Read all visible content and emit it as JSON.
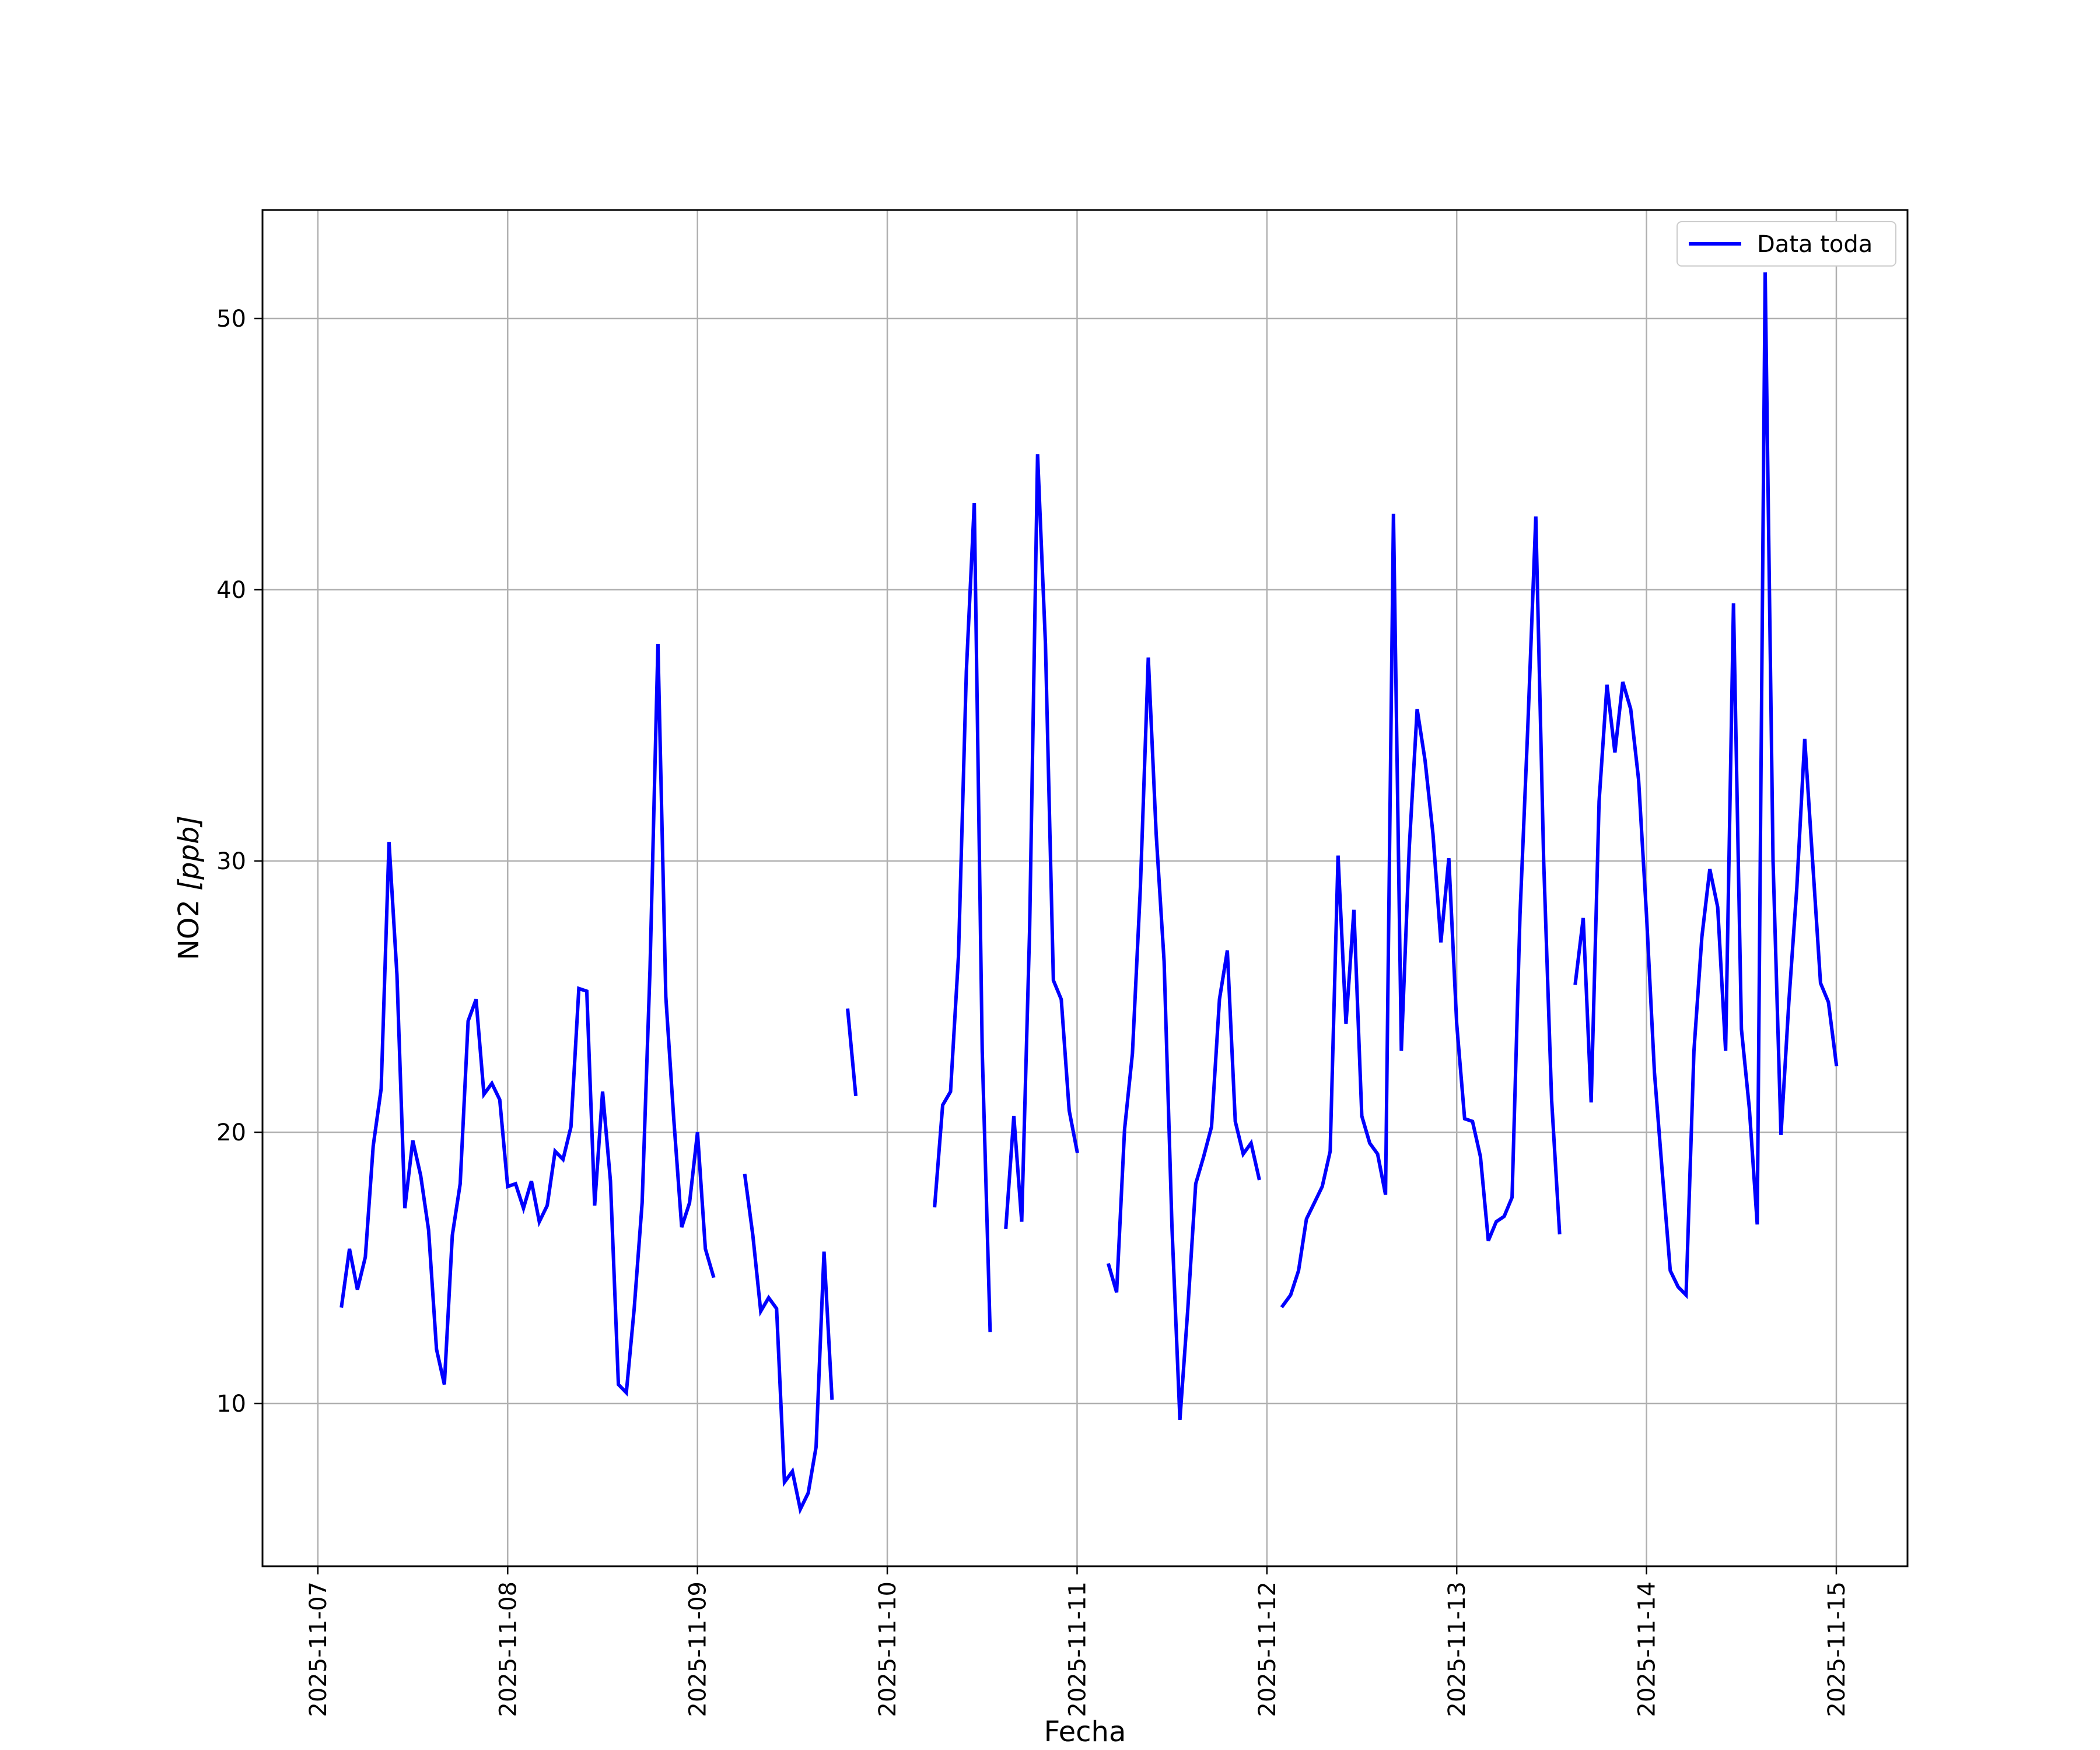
{
  "chart_data": {
    "type": "line",
    "title": "",
    "xlabel": "Fecha",
    "ylabel_main": "NO2 ",
    "ylabel_unit": "[ppb]",
    "xlim": [
      "2025-11-06 17:00",
      "2025-11-15 09:00"
    ],
    "ylim": [
      4,
      54
    ],
    "grid": true,
    "legend_position": "upper right",
    "x_ticks": [
      "2025-11-07",
      "2025-11-08",
      "2025-11-09",
      "2025-11-10",
      "2025-11-11",
      "2025-11-12",
      "2025-11-13",
      "2025-11-14",
      "2025-11-15"
    ],
    "y_ticks": [
      10,
      20,
      30,
      40,
      50
    ],
    "series": [
      {
        "name": "Data toda",
        "color": "#0000ff",
        "segments": [
          [
            [
              "2025-11-07 03:00",
              13.6
            ],
            [
              "2025-11-07 04:00",
              15.7
            ],
            [
              "2025-11-07 05:00",
              14.2
            ],
            [
              "2025-11-07 06:00",
              15.4
            ],
            [
              "2025-11-07 07:00",
              19.5
            ],
            [
              "2025-11-07 08:00",
              21.6
            ],
            [
              "2025-11-07 09:00",
              30.7
            ],
            [
              "2025-11-07 10:00",
              25.8
            ],
            [
              "2025-11-07 11:00",
              17.2
            ],
            [
              "2025-11-07 12:00",
              19.7
            ],
            [
              "2025-11-07 13:00",
              18.4
            ],
            [
              "2025-11-07 14:00",
              16.4
            ],
            [
              "2025-11-07 15:00",
              12.0
            ],
            [
              "2025-11-07 16:00",
              10.7
            ],
            [
              "2025-11-07 17:00",
              16.2
            ],
            [
              "2025-11-07 18:00",
              18.1
            ],
            [
              "2025-11-07 19:00",
              24.1
            ],
            [
              "2025-11-07 20:00",
              24.9
            ],
            [
              "2025-11-07 21:00",
              21.4
            ],
            [
              "2025-11-07 22:00",
              21.8
            ],
            [
              "2025-11-07 23:00",
              21.2
            ],
            [
              "2025-11-08 00:00",
              18.0
            ],
            [
              "2025-11-08 01:00",
              18.1
            ],
            [
              "2025-11-08 02:00",
              17.2
            ],
            [
              "2025-11-08 03:00",
              18.2
            ],
            [
              "2025-11-08 04:00",
              16.7
            ],
            [
              "2025-11-08 05:00",
              17.3
            ],
            [
              "2025-11-08 06:00",
              19.3
            ],
            [
              "2025-11-08 07:00",
              19.0
            ],
            [
              "2025-11-08 08:00",
              20.2
            ],
            [
              "2025-11-08 09:00",
              25.3
            ],
            [
              "2025-11-08 10:00",
              25.2
            ],
            [
              "2025-11-08 11:00",
              17.3
            ],
            [
              "2025-11-08 12:00",
              21.5
            ],
            [
              "2025-11-08 13:00",
              18.2
            ],
            [
              "2025-11-08 14:00",
              10.7
            ],
            [
              "2025-11-08 15:00",
              10.4
            ],
            [
              "2025-11-08 16:00",
              13.5
            ],
            [
              "2025-11-08 17:00",
              17.4
            ],
            [
              "2025-11-08 18:00",
              26.0
            ],
            [
              "2025-11-08 19:00",
              38.0
            ],
            [
              "2025-11-08 20:00",
              25.0
            ],
            [
              "2025-11-08 21:00",
              20.5
            ],
            [
              "2025-11-08 22:00",
              16.5
            ],
            [
              "2025-11-08 23:00",
              17.4
            ],
            [
              "2025-11-09 00:00",
              20.0
            ],
            [
              "2025-11-09 01:00",
              15.7
            ],
            [
              "2025-11-09 02:00",
              14.7
            ]
          ],
          [
            [
              "2025-11-09 06:00",
              18.4
            ],
            [
              "2025-11-09 07:00",
              16.2
            ],
            [
              "2025-11-09 08:00",
              13.4
            ],
            [
              "2025-11-09 09:00",
              13.9
            ],
            [
              "2025-11-09 10:00",
              13.5
            ],
            [
              "2025-11-09 11:00",
              7.1
            ],
            [
              "2025-11-09 12:00",
              7.5
            ],
            [
              "2025-11-09 13:00",
              6.1
            ],
            [
              "2025-11-09 14:00",
              6.7
            ],
            [
              "2025-11-09 15:00",
              8.4
            ],
            [
              "2025-11-09 16:00",
              15.6
            ],
            [
              "2025-11-09 17:00",
              10.2
            ]
          ],
          [
            [
              "2025-11-09 19:00",
              24.5
            ],
            [
              "2025-11-09 20:00",
              21.4
            ]
          ],
          [
            [
              "2025-11-10 06:00",
              17.3
            ],
            [
              "2025-11-10 07:00",
              21.0
            ],
            [
              "2025-11-10 08:00",
              21.5
            ],
            [
              "2025-11-10 09:00",
              26.5
            ],
            [
              "2025-11-10 10:00",
              37.0
            ],
            [
              "2025-11-10 11:00",
              43.2
            ],
            [
              "2025-11-10 12:00",
              23.0
            ],
            [
              "2025-11-10 13:00",
              12.7
            ]
          ],
          [
            [
              "2025-11-10 15:00",
              16.5
            ],
            [
              "2025-11-10 16:00",
              20.6
            ],
            [
              "2025-11-10 17:00",
              16.7
            ],
            [
              "2025-11-10 18:00",
              27.5
            ],
            [
              "2025-11-10 19:00",
              45.0
            ],
            [
              "2025-11-10 20:00",
              38.0
            ],
            [
              "2025-11-10 21:00",
              25.6
            ],
            [
              "2025-11-10 22:00",
              24.9
            ],
            [
              "2025-11-10 23:00",
              20.8
            ],
            [
              "2025-11-11 00:00",
              19.3
            ]
          ],
          [
            [
              "2025-11-11 04:00",
              15.1
            ],
            [
              "2025-11-11 05:00",
              14.1
            ],
            [
              "2025-11-11 06:00",
              20.1
            ],
            [
              "2025-11-11 07:00",
              22.9
            ],
            [
              "2025-11-11 08:00",
              29.0
            ],
            [
              "2025-11-11 09:00",
              37.5
            ],
            [
              "2025-11-11 10:00",
              31.0
            ],
            [
              "2025-11-11 11:00",
              26.3
            ],
            [
              "2025-11-11 12:00",
              16.5
            ],
            [
              "2025-11-11 13:00",
              9.4
            ],
            [
              "2025-11-11 14:00",
              13.5
            ],
            [
              "2025-11-11 15:00",
              18.1
            ],
            [
              "2025-11-11 16:00",
              19.1
            ],
            [
              "2025-11-11 17:00",
              20.2
            ],
            [
              "2025-11-11 18:00",
              24.9
            ],
            [
              "2025-11-11 19:00",
              26.7
            ],
            [
              "2025-11-11 20:00",
              20.4
            ],
            [
              "2025-11-11 21:00",
              19.2
            ],
            [
              "2025-11-11 22:00",
              19.6
            ],
            [
              "2025-11-11 23:00",
              18.3
            ]
          ],
          [
            [
              "2025-11-12 02:00",
              13.6
            ],
            [
              "2025-11-12 03:00",
              14.0
            ],
            [
              "2025-11-12 04:00",
              14.9
            ],
            [
              "2025-11-12 05:00",
              16.8
            ],
            [
              "2025-11-12 06:00",
              17.4
            ],
            [
              "2025-11-12 07:00",
              18.0
            ],
            [
              "2025-11-12 08:00",
              19.3
            ],
            [
              "2025-11-12 09:00",
              30.2
            ],
            [
              "2025-11-12 10:00",
              24.0
            ],
            [
              "2025-11-12 11:00",
              28.2
            ],
            [
              "2025-11-12 12:00",
              20.6
            ],
            [
              "2025-11-12 13:00",
              19.6
            ],
            [
              "2025-11-12 14:00",
              19.2
            ],
            [
              "2025-11-12 15:00",
              17.7
            ],
            [
              "2025-11-12 16:00",
              42.8
            ],
            [
              "2025-11-12 17:00",
              23.0
            ],
            [
              "2025-11-12 18:00",
              30.5
            ],
            [
              "2025-11-12 19:00",
              35.6
            ],
            [
              "2025-11-12 20:00",
              33.7
            ],
            [
              "2025-11-12 21:00",
              31.0
            ],
            [
              "2025-11-12 22:00",
              27.0
            ],
            [
              "2025-11-12 23:00",
              30.1
            ],
            [
              "2025-11-13 00:00",
              24.0
            ],
            [
              "2025-11-13 01:00",
              20.5
            ],
            [
              "2025-11-13 02:00",
              20.4
            ],
            [
              "2025-11-13 03:00",
              19.1
            ],
            [
              "2025-11-13 04:00",
              16.0
            ],
            [
              "2025-11-13 05:00",
              16.7
            ],
            [
              "2025-11-13 06:00",
              16.9
            ],
            [
              "2025-11-13 07:00",
              17.6
            ],
            [
              "2025-11-13 08:00",
              28.0
            ],
            [
              "2025-11-13 09:00",
              35.0
            ],
            [
              "2025-11-13 10:00",
              42.7
            ],
            [
              "2025-11-13 11:00",
              30.0
            ],
            [
              "2025-11-13 12:00",
              21.2
            ],
            [
              "2025-11-13 13:00",
              16.3
            ]
          ],
          [
            [
              "2025-11-13 15:00",
              25.5
            ],
            [
              "2025-11-13 16:00",
              27.9
            ],
            [
              "2025-11-13 17:00",
              21.1
            ],
            [
              "2025-11-13 18:00",
              32.2
            ],
            [
              "2025-11-13 19:00",
              36.5
            ],
            [
              "2025-11-13 20:00",
              34.0
            ],
            [
              "2025-11-13 21:00",
              36.6
            ],
            [
              "2025-11-13 22:00",
              35.6
            ],
            [
              "2025-11-13 23:00",
              33.0
            ],
            [
              "2025-11-14 00:00",
              28.0
            ],
            [
              "2025-11-14 01:00",
              22.2
            ],
            [
              "2025-11-14 02:00",
              18.5
            ],
            [
              "2025-11-14 03:00",
              14.9
            ],
            [
              "2025-11-14 04:00",
              14.3
            ],
            [
              "2025-11-14 05:00",
              14.0
            ],
            [
              "2025-11-14 06:00",
              23.0
            ],
            [
              "2025-11-14 07:00",
              27.2
            ],
            [
              "2025-11-14 08:00",
              29.7
            ],
            [
              "2025-11-14 09:00",
              28.3
            ],
            [
              "2025-11-14 10:00",
              23.0
            ],
            [
              "2025-11-14 11:00",
              39.5
            ],
            [
              "2025-11-14 12:00",
              23.8
            ],
            [
              "2025-11-14 13:00",
              20.9
            ],
            [
              "2025-11-14 14:00",
              16.6
            ],
            [
              "2025-11-14 15:00",
              51.7
            ],
            [
              "2025-11-14 16:00",
              30.0
            ],
            [
              "2025-11-14 17:00",
              19.9
            ],
            [
              "2025-11-14 18:00",
              24.8
            ],
            [
              "2025-11-14 19:00",
              29.0
            ],
            [
              "2025-11-14 20:00",
              34.5
            ],
            [
              "2025-11-14 21:00",
              30.0
            ],
            [
              "2025-11-14 22:00",
              25.5
            ],
            [
              "2025-11-14 23:00",
              24.8
            ],
            [
              "2025-11-15 00:00",
              22.5
            ]
          ]
        ]
      }
    ]
  }
}
